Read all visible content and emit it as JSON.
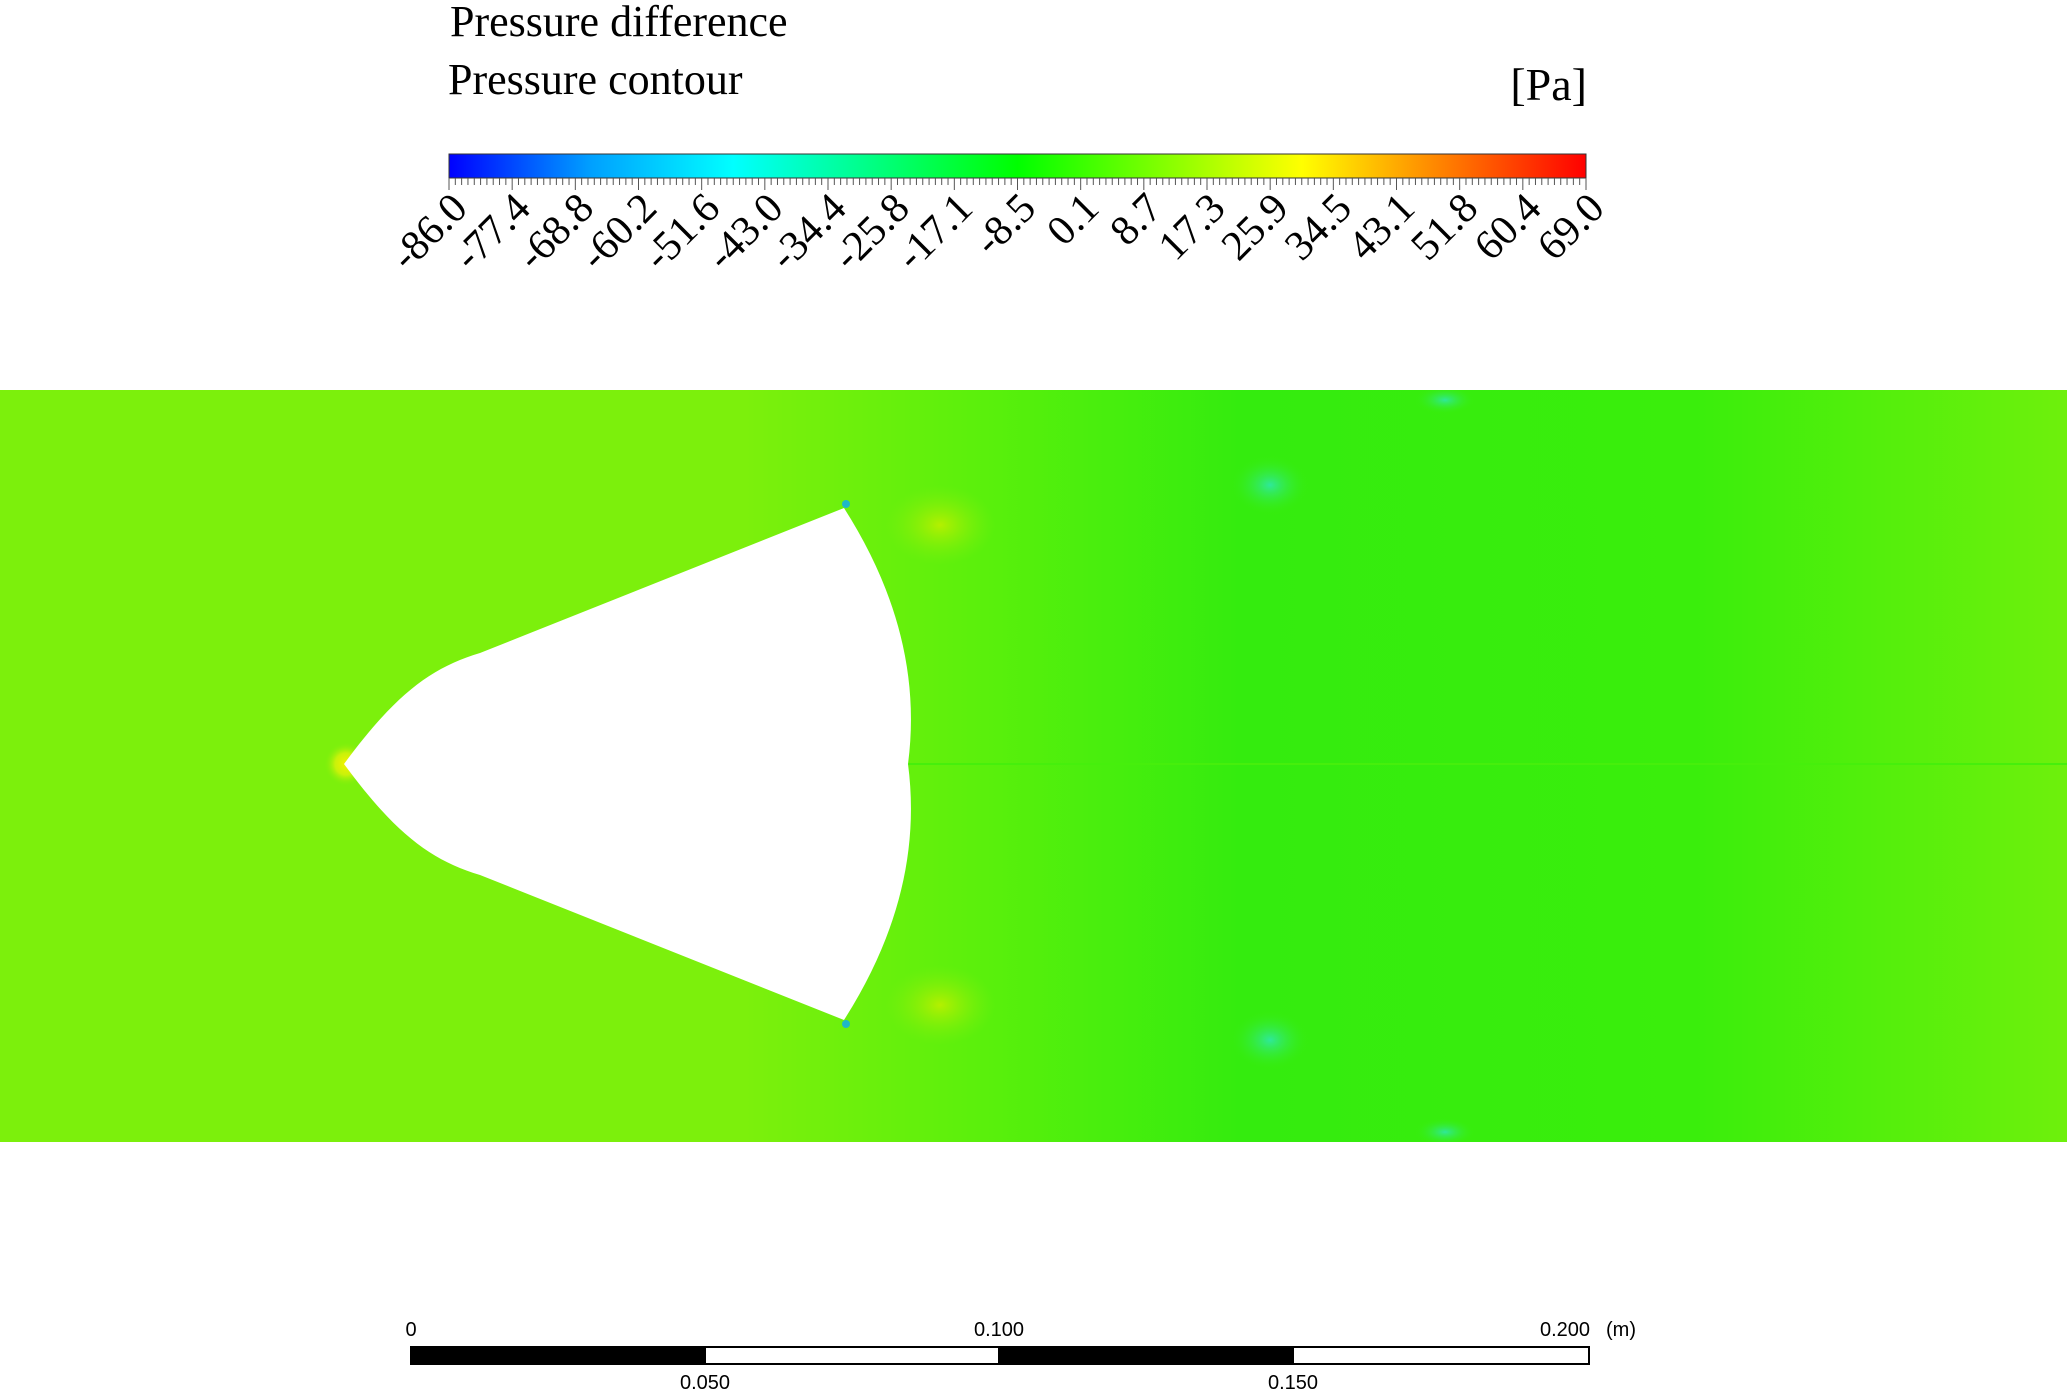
{
  "legend": {
    "title": "Pressure difference",
    "subtitle": "Pressure contour",
    "unit": "[Pa]",
    "tick_labels": [
      "-86.0",
      "-77.4",
      "-68.8",
      "-60.2",
      "-51.6",
      "-43.0",
      "-34.4",
      "-25.8",
      "-17.1",
      "-8.5",
      "0.1",
      "8.7",
      "17.3",
      "25.9",
      "34.5",
      "43.1",
      "51.8",
      "60.4",
      "69.0"
    ],
    "min": -86.0,
    "max": 69.0,
    "colormap": [
      "#0000ff",
      "#00a0ff",
      "#00ffff",
      "#00ff80",
      "#00ff00",
      "#80ff00",
      "#ffff00",
      "#ff8000",
      "#ff0000"
    ]
  },
  "chart_data": {
    "type": "heatmap",
    "title": "Pressure difference",
    "subtitle": "Pressure contour",
    "colorbar_label": "[Pa]",
    "colorbar_range": [
      -86.0,
      69.0
    ],
    "colorbar_ticks": [
      -86.0,
      -77.4,
      -68.8,
      -60.2,
      -51.6,
      -43.0,
      -34.4,
      -25.8,
      -17.1,
      -8.5,
      0.1,
      8.7,
      17.3,
      25.9,
      34.5,
      43.1,
      51.8,
      60.4,
      69.0
    ],
    "field_colors": {
      "upstream": "#7cf00c",
      "downstream": "#33ee0c",
      "stagnation_point": "#f5f200",
      "corner_low": "#1fb7c8"
    },
    "scale_bar": {
      "unit": "(m)",
      "top_labels": [
        "0",
        "0.100",
        "0.200"
      ],
      "bottom_labels": [
        "0.050",
        "0.150"
      ]
    }
  }
}
